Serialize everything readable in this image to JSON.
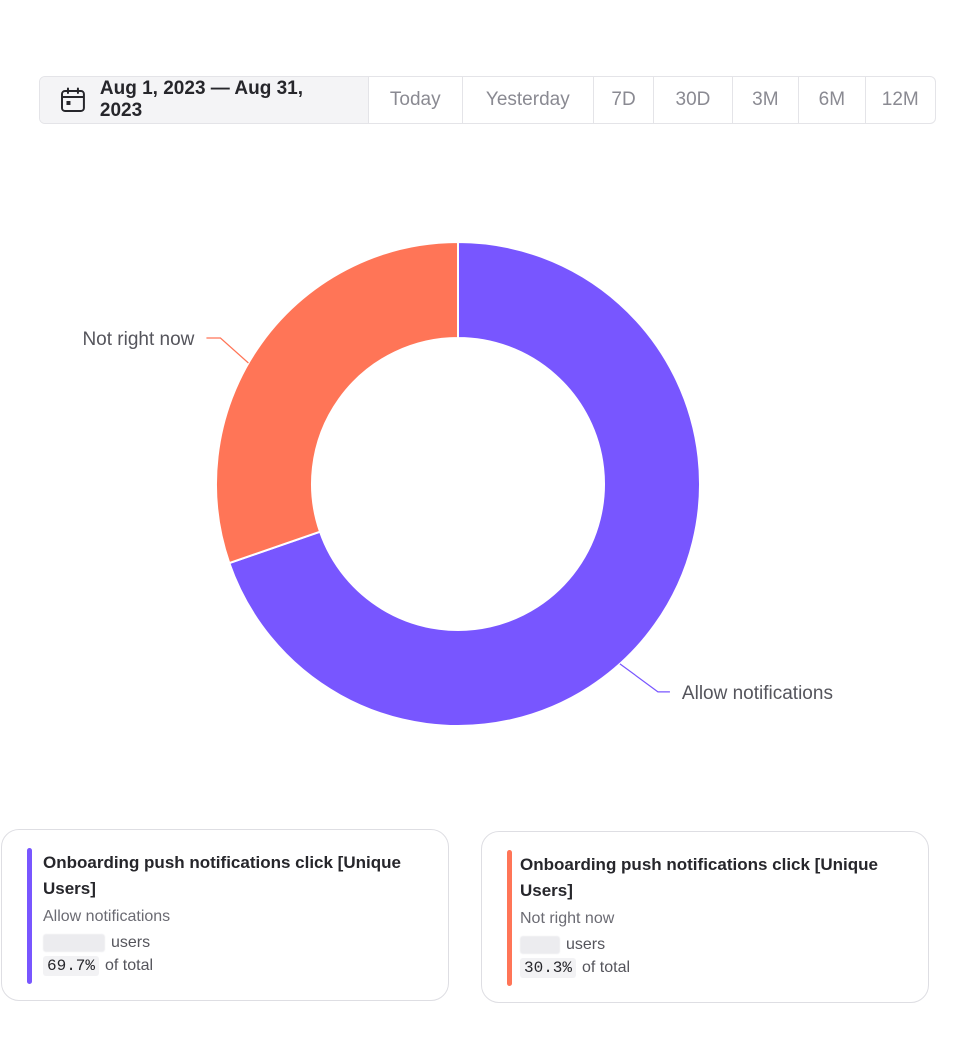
{
  "date_range": {
    "label": "Aug 1, 2023 — Aug 31, 2023",
    "presets": [
      "Today",
      "Yesterday",
      "7D",
      "30D",
      "3M",
      "6M",
      "12M"
    ]
  },
  "colors": {
    "allow": "#7856ff",
    "not_now": "#ff7557"
  },
  "chart_data": {
    "type": "pie",
    "donut": true,
    "slices": [
      {
        "label": "Allow notifications",
        "percent": 69.7,
        "color": "#7856ff"
      },
      {
        "label": "Not right now",
        "percent": 30.3,
        "color": "#ff7557"
      }
    ]
  },
  "legend_cards": [
    {
      "metric": "Onboarding push notifications click [Unique Users]",
      "segment": "Allow notifications",
      "users_suffix": "users",
      "percent": "69.7%",
      "of_total": "of total",
      "color": "#7856ff"
    },
    {
      "metric": "Onboarding push notifications click [Unique Users]",
      "segment": "Not right now",
      "users_suffix": "users",
      "percent": "30.3%",
      "of_total": "of total",
      "color": "#ff7557"
    }
  ]
}
